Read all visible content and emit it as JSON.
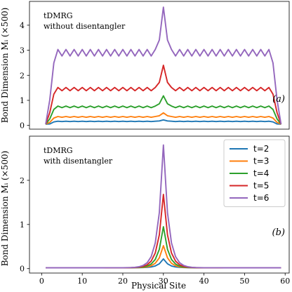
{
  "figure": {
    "xlabel": "Physical Site",
    "ylabel": "Bond Dimension Mᵢ (×500)"
  },
  "chart_data": [
    {
      "type": "line",
      "panel_tag": "(a)",
      "annotation": [
        "tDMRG",
        "without disentangler"
      ],
      "xlim": [
        -3,
        61
      ],
      "ylim": [
        -0.15,
        4.95
      ],
      "yticks": [
        0,
        1,
        2,
        3,
        4
      ],
      "legend": false,
      "series": [
        {
          "label": "t=2",
          "color": "#1f77b4",
          "flat": 0.16,
          "peak": 0.22,
          "edge": 0.05
        },
        {
          "label": "t=3",
          "color": "#ff7f0e",
          "flat": 0.34,
          "peak": 0.5,
          "edge": 0.05
        },
        {
          "label": "t=4",
          "color": "#2ca02c",
          "flat": 0.74,
          "peak": 1.18,
          "edge": 0.05
        },
        {
          "label": "t=5",
          "color": "#d62728",
          "flat": 1.45,
          "peak": 2.4,
          "edge": 0.05
        },
        {
          "label": "t=6",
          "color": "#9467bd",
          "flat": 2.9,
          "peak": 4.72,
          "edge": 0.05
        }
      ]
    },
    {
      "type": "line",
      "panel_tag": "(b)",
      "annotation": [
        "tDMRG",
        "with disentangler"
      ],
      "xlim": [
        -3,
        61
      ],
      "ylim": [
        -0.1,
        3.0
      ],
      "yticks": [
        0,
        1,
        2
      ],
      "xticks": [
        0,
        10,
        20,
        30,
        40,
        50,
        60
      ],
      "legend": true,
      "legend_position": "top-right",
      "series": [
        {
          "name": "t=2",
          "color": "#1f77b4",
          "peak": 0.22
        },
        {
          "name": "t=3",
          "color": "#ff7f0e",
          "peak": 0.52
        },
        {
          "name": "t=4",
          "color": "#2ca02c",
          "peak": 0.95
        },
        {
          "name": "t=5",
          "color": "#d62728",
          "peak": 1.68
        },
        {
          "name": "t=6",
          "color": "#9467bd",
          "peak": 2.8
        }
      ]
    }
  ]
}
